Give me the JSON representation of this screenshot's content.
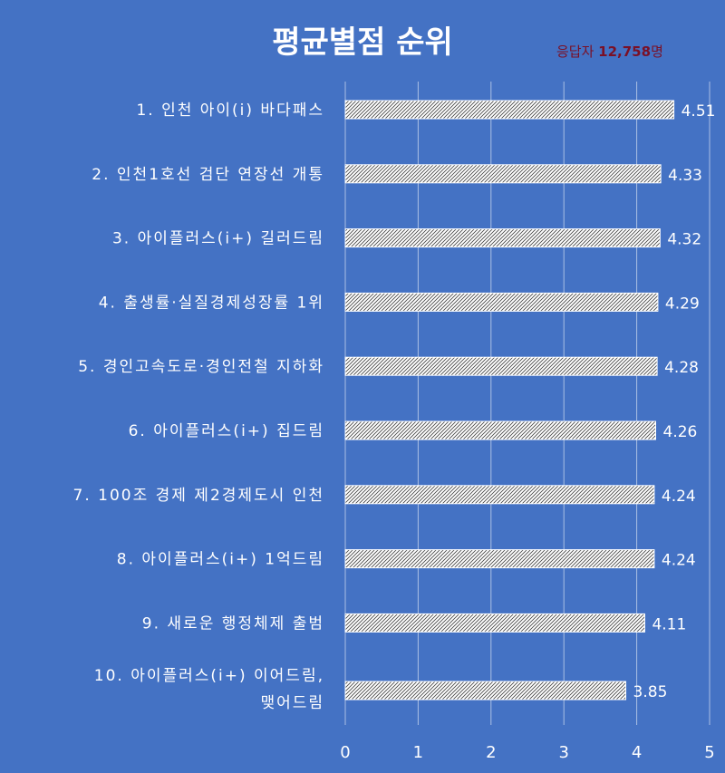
{
  "chart_data": {
    "type": "bar",
    "orientation": "horizontal",
    "title": "평균별점 순위",
    "respondents": {
      "prefix": "응답자 ",
      "number": "12,758",
      "suffix": "명"
    },
    "categories": [
      [
        "1. 인천 아이(i) 바다패스"
      ],
      [
        "2. 인천1호선 검단 연장선 개통"
      ],
      [
        "3. 아이플러스(i+) 길러드림"
      ],
      [
        "4. 출생률·실질경제성장률 1위"
      ],
      [
        "5. 경인고속도로·경인전철 지하화"
      ],
      [
        "6. 아이플러스(i+) 집드림"
      ],
      [
        "7. 100조 경제 제2경제도시 인천"
      ],
      [
        "8. 아이플러스(i+) 1억드림"
      ],
      [
        "9. 새로운 행정체제 출범"
      ],
      [
        "10. 아이플러스(i+) 이어드림,",
        "맺어드림"
      ]
    ],
    "values": [
      4.51,
      4.33,
      4.32,
      4.29,
      4.28,
      4.26,
      4.24,
      4.24,
      4.11,
      3.85
    ],
    "value_labels": [
      "4.51",
      "4.33",
      "4.32",
      "4.29",
      "4.28",
      "4.26",
      "4.24",
      "4.24",
      "4.11",
      "3.85"
    ],
    "xlim": [
      0,
      5
    ],
    "xticks": [
      "0",
      "1",
      "2",
      "3",
      "4",
      "5"
    ],
    "grid": true,
    "colors": {
      "background": "#4472c4",
      "bar_fill": "#ffffff",
      "bar_hatch": "#404040",
      "grid": "#ffffff",
      "text": "#ffffff",
      "respondents_text": "#7a1026"
    }
  }
}
